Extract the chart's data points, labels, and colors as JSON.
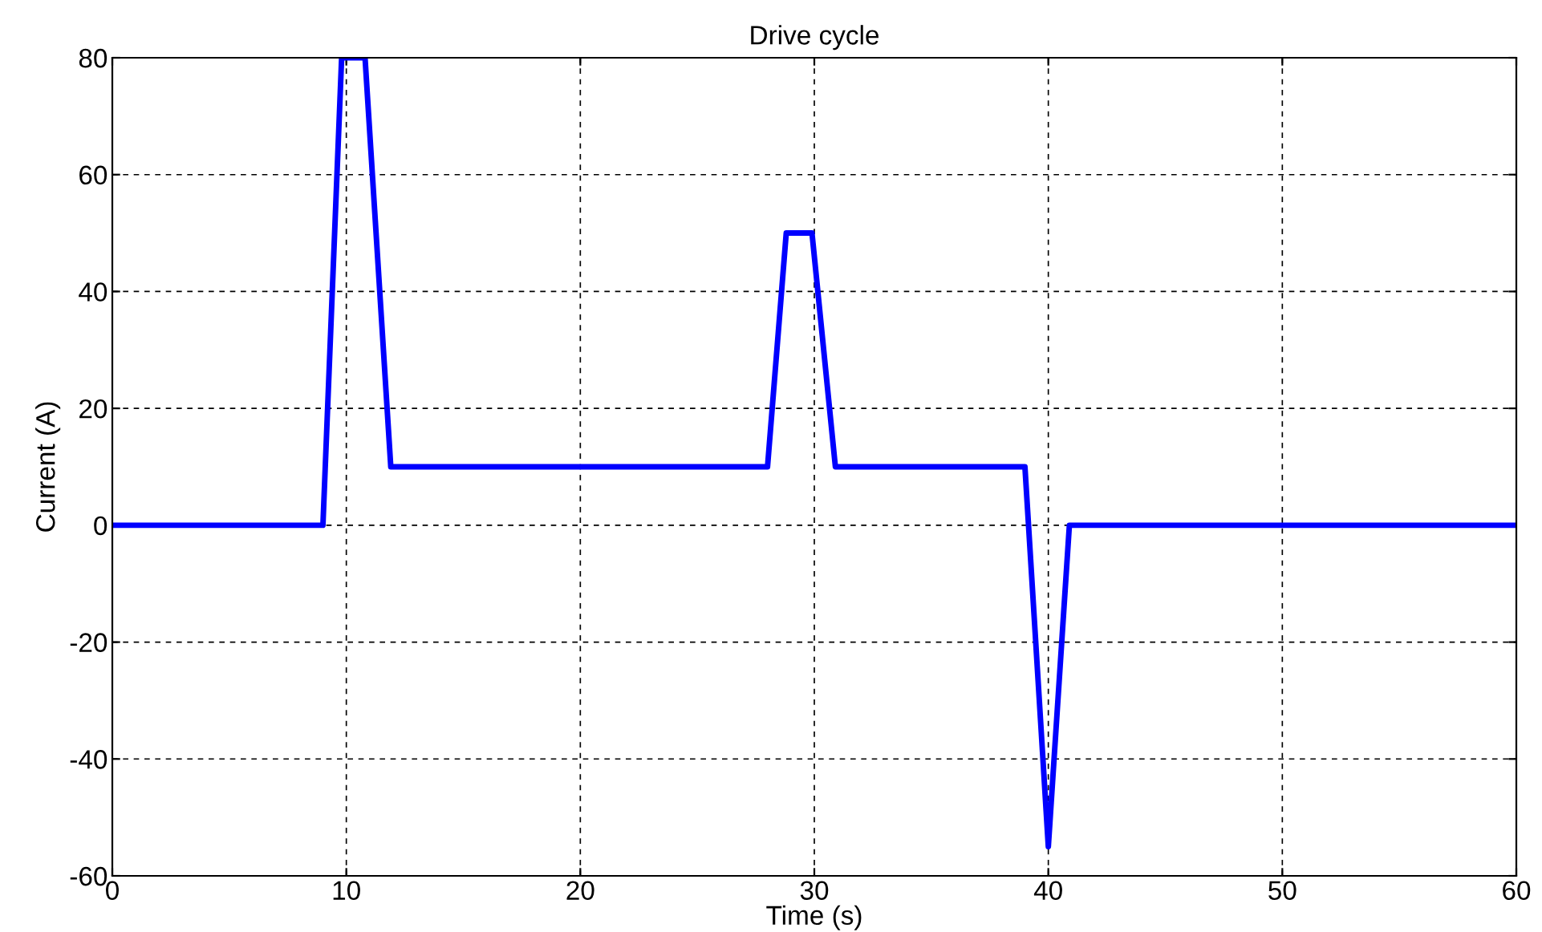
{
  "chart_data": {
    "type": "line",
    "title": "Drive cycle",
    "xlabel": "Time (s)",
    "ylabel": "Current (A)",
    "x": [
      0,
      9,
      9.8,
      10.8,
      11.9,
      28,
      28.8,
      29.9,
      30.9,
      39,
      40,
      40.9,
      60
    ],
    "series": [
      {
        "color": "#0000ff",
        "values": [
          0,
          0,
          80,
          80,
          10,
          10,
          50,
          50,
          10,
          10,
          -55,
          0,
          0
        ]
      }
    ],
    "xlim": [
      0,
      60
    ],
    "ylim": [
      -60,
      80
    ],
    "xticks": [
      0,
      10,
      20,
      30,
      40,
      50,
      60
    ],
    "yticks": [
      -60,
      -40,
      -20,
      0,
      20,
      40,
      60,
      80
    ],
    "grid": true,
    "line_style": "solid",
    "marker": "none",
    "legend": false
  }
}
